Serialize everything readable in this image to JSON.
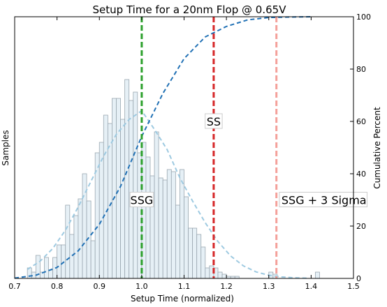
{
  "chart_data": {
    "type": "bar",
    "title": "Setup Time for a 20nm Flop @ 0.65V",
    "xlabel": "Setup Time (normalized)",
    "ylabel": "Samples",
    "y2label": "Cumulative Percent",
    "xlim": [
      0.7,
      1.5
    ],
    "y2lim": [
      0,
      100
    ],
    "grid": false,
    "xticks": [
      "0.7",
      "0.8",
      "0.9",
      "1.0",
      "1.1",
      "1.2",
      "1.3",
      "1.4",
      "1.5"
    ],
    "y2ticks": [
      "0",
      "20",
      "40",
      "60",
      "80",
      "100"
    ],
    "histogram": {
      "bin_width": 0.01,
      "bin_starts": [
        0.73,
        0.74,
        0.75,
        0.76,
        0.77,
        0.78,
        0.79,
        0.8,
        0.81,
        0.82,
        0.83,
        0.84,
        0.85,
        0.86,
        0.87,
        0.88,
        0.89,
        0.9,
        0.91,
        0.92,
        0.93,
        0.94,
        0.95,
        0.96,
        0.97,
        0.98,
        0.99,
        1.0,
        1.01,
        1.02,
        1.03,
        1.04,
        1.05,
        1.06,
        1.07,
        1.08,
        1.09,
        1.1,
        1.11,
        1.12,
        1.13,
        1.14,
        1.15,
        1.16,
        1.17,
        1.18,
        1.19,
        1.2,
        1.21,
        1.22,
        1.23,
        1.24,
        1.25,
        1.26,
        1.27,
        1.28,
        1.29,
        1.3,
        1.31,
        1.32,
        1.33,
        1.34,
        1.35,
        1.36,
        1.37,
        1.38,
        1.39,
        1.4,
        1.41
      ],
      "counts": [
        5,
        3,
        11,
        3,
        10,
        4,
        10,
        16,
        16,
        35,
        21,
        30,
        38,
        50,
        37,
        18,
        60,
        65,
        78,
        74,
        86,
        86,
        76,
        95,
        85,
        89,
        60,
        65,
        58,
        49,
        70,
        48,
        47,
        52,
        51,
        35,
        52,
        39,
        24,
        24,
        21,
        15,
        5,
        6,
        5,
        3,
        2,
        1,
        1,
        1,
        0,
        0,
        0,
        0,
        0,
        0,
        0,
        3,
        2,
        0,
        0,
        0,
        0,
        0,
        0,
        0,
        0,
        0,
        3
      ]
    },
    "series": [
      {
        "type": "line",
        "style": "dashed",
        "color": "#9ecae1",
        "x": [
          0.73,
          0.76,
          0.79,
          0.82,
          0.85,
          0.88,
          0.91,
          0.94,
          0.97,
          1.0,
          1.03,
          1.06,
          1.09,
          1.12,
          1.15,
          1.18,
          1.21,
          1.24,
          1.27,
          1.3,
          1.33,
          1.36,
          1.39
        ],
        "y": [
          4.3,
          8.2,
          14.3,
          23.1,
          34.1,
          46.3,
          58.4,
          68.8,
          75.9,
          80.1,
          71.2,
          61.5,
          48.1,
          37.0,
          26.6,
          17.6,
          10.7,
          6.0,
          3.1,
          1.5,
          0.7,
          0.3,
          0.1
        ]
      },
      {
        "type": "line",
        "style": "dashed",
        "color": "#2171b5",
        "axis": "y2",
        "x": [
          0.7,
          0.75,
          0.8,
          0.85,
          0.9,
          0.95,
          1.0,
          1.05,
          1.1,
          1.15,
          1.2,
          1.25,
          1.3,
          1.35,
          1.4
        ],
        "y": [
          0.1,
          1.2,
          4.2,
          10.5,
          20.7,
          35.2,
          54.3,
          70.7,
          84.0,
          92.3,
          96.3,
          98.8,
          99.7,
          99.9,
          100.0
        ]
      }
    ],
    "vlines": [
      {
        "label": "SSG",
        "x": 1.0,
        "color": "#2ca02c"
      },
      {
        "label": "SS",
        "x": 1.17,
        "color": "#d62728"
      },
      {
        "label": "SSG + 3 Sigma",
        "x": 1.318,
        "color": "#f4a09a"
      }
    ],
    "annotations": [
      {
        "text": "SSG",
        "x": 1.0,
        "y2": 30
      },
      {
        "text": "SS",
        "x": 1.17,
        "y2": 60
      },
      {
        "text": "SSG + 3 Sigma",
        "x": 1.33,
        "y2": 30
      }
    ]
  }
}
